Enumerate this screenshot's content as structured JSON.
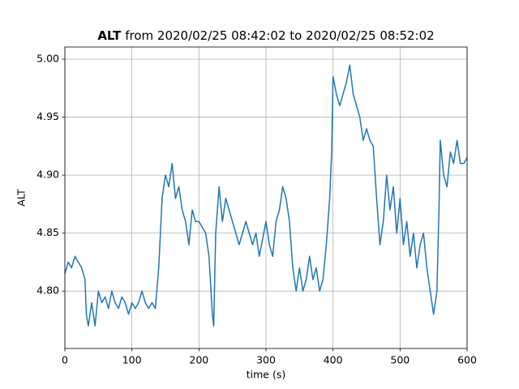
{
  "chart_data": {
    "type": "line",
    "title_variable": "ALT",
    "title_range": "from 2020/02/25 08:42:02 to 2020/02/25 08:52:02",
    "x_label": "time (s)",
    "y_label": "ALT",
    "xlim": [
      0,
      600
    ],
    "ylim": [
      4.7505,
      5.0105
    ],
    "xticks": [
      0,
      100,
      200,
      300,
      400,
      500,
      600
    ],
    "yticks": [
      {
        "value": 4.8,
        "label": "4.80"
      },
      {
        "value": 4.85,
        "label": "4.85"
      },
      {
        "value": 4.9,
        "label": "4.90"
      },
      {
        "value": 4.95,
        "label": "4.95"
      },
      {
        "value": 5.0,
        "label": "5.00"
      }
    ],
    "grid": true,
    "series": [
      {
        "name": "ALT",
        "color": "#1f77b4",
        "x": [
          0,
          5,
          10,
          15,
          20,
          25,
          30,
          32,
          35,
          40,
          45,
          50,
          55,
          60,
          65,
          70,
          75,
          80,
          85,
          90,
          95,
          100,
          105,
          110,
          115,
          120,
          125,
          130,
          135,
          140,
          145,
          150,
          155,
          160,
          165,
          170,
          175,
          180,
          185,
          190,
          195,
          200,
          205,
          210,
          215,
          220,
          222,
          225,
          230,
          235,
          240,
          245,
          250,
          255,
          260,
          265,
          270,
          275,
          280,
          285,
          290,
          295,
          300,
          305,
          310,
          315,
          320,
          325,
          330,
          335,
          340,
          345,
          350,
          355,
          360,
          365,
          370,
          375,
          380,
          385,
          390,
          395,
          398,
          400,
          405,
          410,
          415,
          420,
          425,
          430,
          435,
          440,
          445,
          450,
          455,
          460,
          465,
          470,
          475,
          480,
          485,
          490,
          495,
          500,
          505,
          510,
          515,
          520,
          525,
          530,
          535,
          540,
          545,
          550,
          555,
          558,
          560,
          565,
          570,
          575,
          580,
          585,
          590,
          595,
          600
        ],
        "values": [
          4.815,
          4.825,
          4.82,
          4.83,
          4.825,
          4.82,
          4.81,
          4.78,
          4.77,
          4.79,
          4.77,
          4.8,
          4.79,
          4.795,
          4.785,
          4.8,
          4.79,
          4.785,
          4.795,
          4.79,
          4.78,
          4.79,
          4.785,
          4.79,
          4.8,
          4.79,
          4.785,
          4.79,
          4.785,
          4.82,
          4.88,
          4.9,
          4.89,
          4.91,
          4.88,
          4.89,
          4.87,
          4.86,
          4.84,
          4.87,
          4.86,
          4.86,
          4.855,
          4.85,
          4.83,
          4.78,
          4.77,
          4.85,
          4.89,
          4.86,
          4.88,
          4.87,
          4.86,
          4.85,
          4.84,
          4.85,
          4.86,
          4.85,
          4.84,
          4.85,
          4.83,
          4.845,
          4.86,
          4.84,
          4.83,
          4.86,
          4.87,
          4.89,
          4.88,
          4.86,
          4.82,
          4.8,
          4.82,
          4.8,
          4.81,
          4.83,
          4.81,
          4.82,
          4.8,
          4.81,
          4.84,
          4.88,
          4.92,
          4.985,
          4.97,
          4.96,
          4.97,
          4.98,
          4.995,
          4.97,
          4.96,
          4.95,
          4.93,
          4.94,
          4.93,
          4.925,
          4.88,
          4.84,
          4.86,
          4.9,
          4.87,
          4.89,
          4.85,
          4.88,
          4.84,
          4.86,
          4.83,
          4.85,
          4.82,
          4.84,
          4.85,
          4.82,
          4.8,
          4.78,
          4.8,
          4.87,
          4.93,
          4.9,
          4.89,
          4.92,
          4.91,
          4.93,
          4.91,
          4.91,
          4.915
        ]
      }
    ]
  }
}
